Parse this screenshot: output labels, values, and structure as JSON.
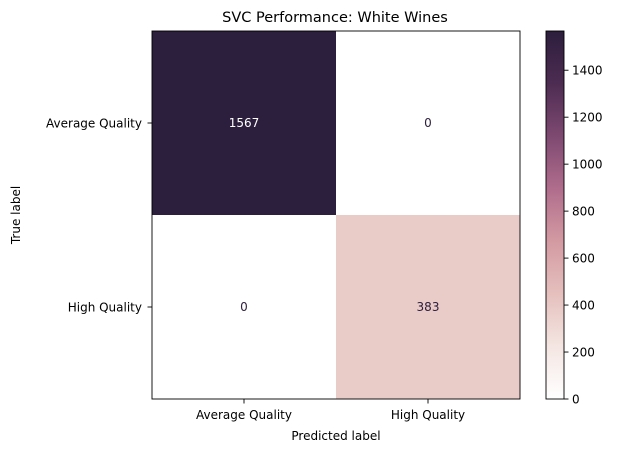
{
  "chart_data": {
    "type": "heatmap",
    "title": "SVC Performance: White Wines",
    "xlabel": "Predicted label",
    "ylabel": "True label",
    "x_categories": [
      "Average Quality",
      "High Quality"
    ],
    "y_categories": [
      "Average Quality",
      "High Quality"
    ],
    "values": [
      [
        1567,
        0
      ],
      [
        0,
        383
      ]
    ],
    "value_labels": [
      [
        "1567",
        "0"
      ],
      [
        "0",
        "383"
      ]
    ],
    "colorbar": {
      "range": [
        0,
        1567
      ],
      "ticks": [
        0,
        200,
        400,
        600,
        800,
        1000,
        1200,
        1400
      ],
      "tick_labels": [
        "0",
        "200",
        "400",
        "600",
        "800",
        "1000",
        "1200",
        "1400"
      ],
      "colors": [
        "#ffffff",
        "#f4e6e2",
        "#e5c0bd",
        "#d39aa2",
        "#b06d8c",
        "#7e4971",
        "#4d2c52",
        "#2c1e3d"
      ]
    }
  }
}
